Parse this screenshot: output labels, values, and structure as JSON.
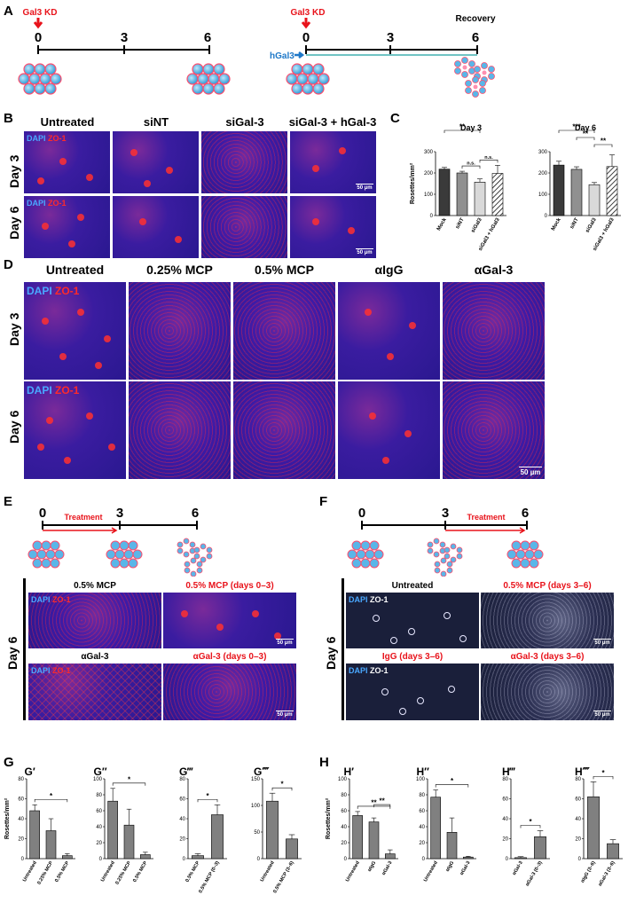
{
  "panels": {
    "A": "A",
    "B": "B",
    "C": "C",
    "D": "D",
    "E": "E",
    "F": "F",
    "G": "G",
    "H": "H"
  },
  "panel_a": {
    "left": {
      "kd_label": "Gal3 KD",
      "ticks": [
        "0",
        "3",
        "6"
      ]
    },
    "right": {
      "kd_label": "Gal3 KD",
      "ticks": [
        "0",
        "3",
        "6"
      ],
      "hgal_label": "hGal3",
      "recovery_label": "Recovery"
    }
  },
  "panel_b": {
    "columns": [
      "Untreated",
      "siNT",
      "siGal-3",
      "siGal-3 + hGal-3"
    ],
    "rows": [
      "Day 3",
      "Day 6"
    ],
    "stain_dapi": "DAPI",
    "stain_zo": "ZO-1",
    "scale": "50 µm"
  },
  "panel_d": {
    "columns": [
      "Untreated",
      "0.25% MCP",
      "0.5% MCP",
      "αIgG",
      "αGal-3"
    ],
    "rows": [
      "Day 3",
      "Day 6"
    ],
    "stain_dapi": "DAPI",
    "stain_zo": "ZO-1",
    "scale": "50 µm"
  },
  "panel_e": {
    "ticks": [
      "0",
      "3",
      "6"
    ],
    "treatment": "Treatment",
    "row": "Day 6",
    "tiles": [
      "0.5% MCP",
      "0.5% MCP (days 0–3)",
      "αGal-3",
      "αGal-3 (days 0–3)"
    ],
    "stain_dapi": "DAPI",
    "stain_zo": "ZO-1",
    "scale": "50 µm"
  },
  "panel_f": {
    "ticks": [
      "0",
      "3",
      "6"
    ],
    "treatment": "Treatment",
    "row": "Day 6",
    "tiles": [
      "Untreated",
      "0.5% MCP (days 3–6)",
      "IgG (days 3–6)",
      "αGal-3 (days 3–6)"
    ],
    "stain_dapi": "DAPI",
    "stain_zo": "ZO-1",
    "scale": "50 µm"
  },
  "chart_data": [
    {
      "id": "C-day3",
      "type": "bar",
      "title": "Day 3",
      "ylabel": "Rosettes/mm²",
      "ylim": [
        0,
        300
      ],
      "yticks": [
        0,
        100,
        200,
        300
      ],
      "categories": [
        "Mock",
        "siNT",
        "siGal3",
        "siGal3 + hGal3"
      ],
      "values": [
        218,
        200,
        157,
        198
      ],
      "errors": [
        8,
        8,
        15,
        38
      ],
      "colors": [
        "#3a3a3a",
        "#909090",
        "#d9d9d9",
        "hatch"
      ],
      "sig": [
        {
          "from": 0,
          "to": 2,
          "label": "**"
        },
        {
          "from": 1,
          "to": 2,
          "label": "n.s."
        },
        {
          "from": 2,
          "to": 3,
          "label": "n.s."
        }
      ]
    },
    {
      "id": "C-day6",
      "type": "bar",
      "title": "Day 6",
      "ylabel": "",
      "ylim": [
        0,
        300
      ],
      "yticks": [
        0,
        100,
        200,
        300
      ],
      "categories": [
        "Mock",
        "siNT",
        "siGal3",
        "siGal3 + hGal3"
      ],
      "values": [
        237,
        217,
        145,
        230
      ],
      "errors": [
        18,
        12,
        10,
        55
      ],
      "colors": [
        "#3a3a3a",
        "#909090",
        "#d9d9d9",
        "hatch"
      ],
      "sig": [
        {
          "from": 0,
          "to": 2,
          "label": "***"
        },
        {
          "from": 1,
          "to": 2,
          "label": "**"
        },
        {
          "from": 2,
          "to": 3,
          "label": "**"
        }
      ]
    },
    {
      "id": "G1",
      "type": "bar",
      "title": "G′",
      "ylabel": "Rosettes/mm²",
      "ylim": [
        0,
        80
      ],
      "yticks": [
        0,
        20,
        40,
        60,
        80
      ],
      "categories": [
        "Untreated",
        "0.25% MCP",
        "0.5% MCP"
      ],
      "values": [
        48,
        28,
        3
      ],
      "errors": [
        6,
        12,
        2
      ],
      "sig": [
        {
          "from": 0,
          "to": 2,
          "label": "*"
        }
      ]
    },
    {
      "id": "G2",
      "type": "bar",
      "title": "G″",
      "ylabel": "",
      "ylim": [
        0,
        100
      ],
      "yticks": [
        0,
        20,
        40,
        60,
        80,
        100
      ],
      "categories": [
        "Untreated",
        "0.25% MCP",
        "0.5% MCP"
      ],
      "values": [
        72,
        42,
        5
      ],
      "errors": [
        16,
        20,
        3
      ],
      "sig": [
        {
          "from": 0,
          "to": 2,
          "label": "*"
        }
      ]
    },
    {
      "id": "G3",
      "type": "bar",
      "title": "G‴",
      "ylabel": "",
      "ylim": [
        0,
        80
      ],
      "yticks": [
        0,
        20,
        40,
        60,
        80
      ],
      "categories": [
        "0.5% MCP",
        "0.5% MCP (0–3)"
      ],
      "values": [
        3,
        44
      ],
      "errors": [
        2,
        10
      ],
      "sig": [
        {
          "from": 0,
          "to": 1,
          "label": "*"
        }
      ]
    },
    {
      "id": "G4",
      "type": "bar",
      "title": "G⁗",
      "ylabel": "",
      "ylim": [
        0,
        150
      ],
      "yticks": [
        0,
        50,
        100,
        150
      ],
      "categories": [
        "Untreated",
        "0.5% MCP (3–6)"
      ],
      "values": [
        108,
        37
      ],
      "errors": [
        15,
        8
      ],
      "sig": [
        {
          "from": 0,
          "to": 1,
          "label": "*"
        }
      ]
    },
    {
      "id": "H1",
      "type": "bar",
      "title": "H′",
      "ylabel": "Rosettes/mm²",
      "ylim": [
        0,
        100
      ],
      "yticks": [
        0,
        20,
        40,
        60,
        80,
        100
      ],
      "categories": [
        "Untreated",
        "αIgG",
        "αGal-3"
      ],
      "values": [
        54,
        46,
        6
      ],
      "errors": [
        5,
        5,
        5
      ],
      "sig": [
        {
          "from": 0,
          "to": 2,
          "label": "**"
        },
        {
          "from": 1,
          "to": 2,
          "label": "**"
        }
      ]
    },
    {
      "id": "H2",
      "type": "bar",
      "title": "H″",
      "ylabel": "",
      "ylim": [
        0,
        100
      ],
      "yticks": [
        0,
        20,
        40,
        60,
        80,
        100
      ],
      "categories": [
        "Untreated",
        "αIgG",
        "αGal-3"
      ],
      "values": [
        77,
        33,
        2
      ],
      "errors": [
        9,
        18,
        1
      ],
      "sig": [
        {
          "from": 0,
          "to": 2,
          "label": "*"
        }
      ]
    },
    {
      "id": "H3",
      "type": "bar",
      "title": "H‴",
      "ylabel": "",
      "ylim": [
        0,
        80
      ],
      "yticks": [
        0,
        20,
        40,
        60,
        80
      ],
      "categories": [
        "αGal-3",
        "αGal-3 (0–3)"
      ],
      "values": [
        1,
        22
      ],
      "errors": [
        1,
        6
      ],
      "sig": [
        {
          "from": 0,
          "to": 1,
          "label": "*"
        }
      ]
    },
    {
      "id": "H4",
      "type": "bar",
      "title": "H⁗",
      "ylabel": "",
      "ylim": [
        0,
        80
      ],
      "yticks": [
        0,
        20,
        40,
        60,
        80
      ],
      "categories": [
        "αIgG (3–6)",
        "αGal-3 (3–6)"
      ],
      "values": [
        62,
        15
      ],
      "errors": [
        15,
        4
      ],
      "sig": [
        {
          "from": 0,
          "to": 1,
          "label": "*"
        }
      ]
    }
  ]
}
